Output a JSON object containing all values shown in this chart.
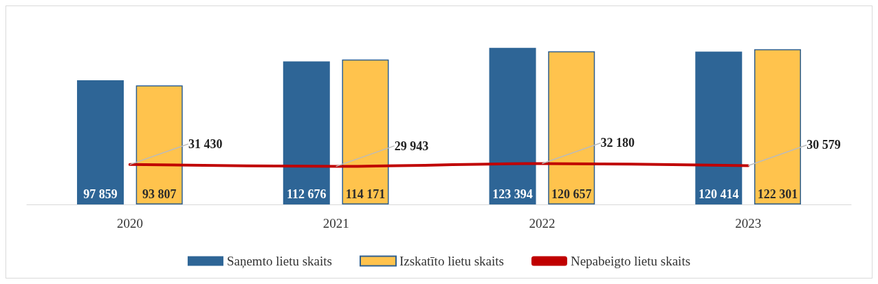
{
  "chart_data": {
    "type": "bar",
    "categories": [
      "2020",
      "2021",
      "2022",
      "2023"
    ],
    "series": [
      {
        "name": "Saņemto lietu skaits",
        "color": "#2e6596",
        "values": [
          97859,
          112676,
          123394,
          120414
        ],
        "value_labels": [
          "97 859",
          "112 676",
          "123 394",
          "120 414"
        ]
      },
      {
        "name": "Izskatīto lietu skaits",
        "color": "#ffc34d",
        "values": [
          93807,
          114171,
          120657,
          122301
        ],
        "value_labels": [
          "93 807",
          "114 171",
          "120 657",
          "122 301"
        ]
      },
      {
        "name": "Nepabeigto lietu skaits",
        "type": "line",
        "color": "#c00000",
        "values": [
          31430,
          29943,
          32180,
          30579
        ],
        "value_labels": [
          "31 430",
          "29 943",
          "32 180",
          "30 579"
        ]
      }
    ],
    "legend": "bottom",
    "grid": false,
    "marker": "none"
  }
}
